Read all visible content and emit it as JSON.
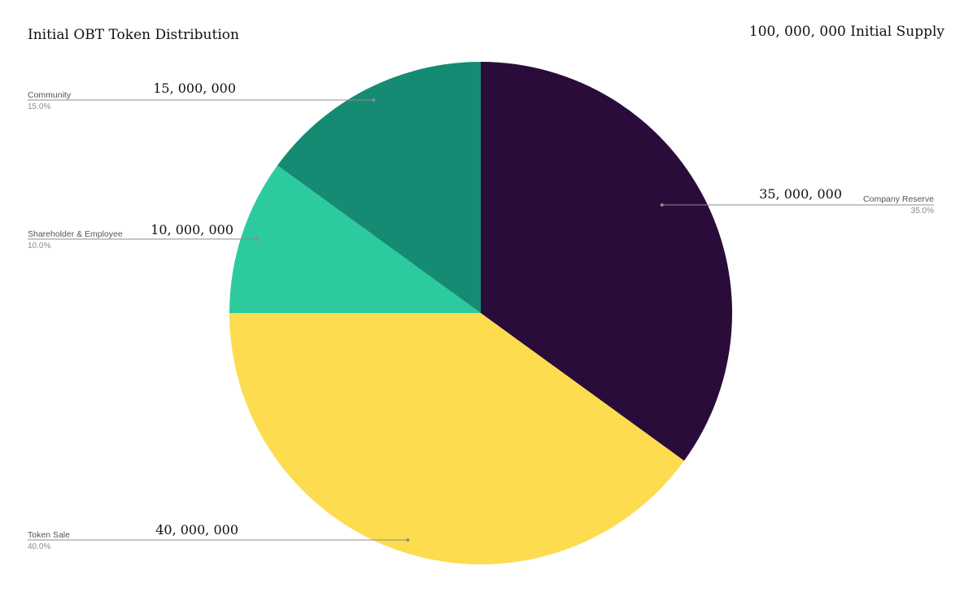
{
  "chart_data": {
    "type": "pie",
    "title": "Initial OBT Token Distribution",
    "subtitle": "100, 000, 000 Initial Supply",
    "total": 100000000,
    "slices": [
      {
        "label": "Company Reserve",
        "value": 35000000,
        "percent": "35.0%",
        "value_label": "35, 000, 000",
        "color": "#2a0c3b"
      },
      {
        "label": "Token Sale",
        "value": 40000000,
        "percent": "40.0%",
        "value_label": "40, 000, 000",
        "color": "#fddc50"
      },
      {
        "label": "Shareholder & Employee",
        "value": 10000000,
        "percent": "10.0%",
        "value_label": "10, 000, 000",
        "color": "#2ccb9f"
      },
      {
        "label": "Community",
        "value": 15000000,
        "percent": "15.0%",
        "value_label": "15, 000, 000",
        "color": "#168b73"
      }
    ],
    "start_angle": "12 o'clock",
    "direction": "clockwise",
    "legend": "none"
  }
}
